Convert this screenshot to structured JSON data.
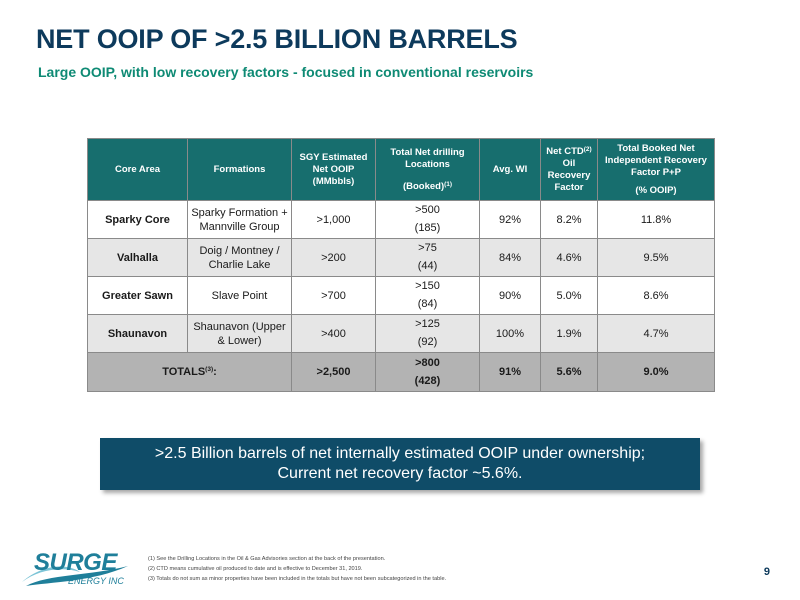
{
  "header": {
    "title": "NET OOIP OF >2.5 BILLION BARRELS",
    "subtitle": "Large OOIP, with low recovery factors - focused in conventional reservoirs"
  },
  "table": {
    "headers": {
      "core_area": "Core Area",
      "formations": "Formations",
      "ooip": "SGY Estimated Net OOIP (MMbbls)",
      "drilling_line1": "Total Net drilling Locations",
      "drilling_booked": "(Booked)",
      "drilling_booked_sup": "(1)",
      "wi": "Avg. WI",
      "ctd_prefix": "Net CTD",
      "ctd_sup": "(2)",
      "ctd_rest": "Oil Recovery Factor",
      "rf_line1": "Total Booked Net Independent Recovery Factor P+P",
      "rf_line2": "(% OOIP)"
    },
    "rows": [
      {
        "area": "Sparky Core",
        "formations": "Sparky Formation + Mannville Group",
        "ooip": ">1,000",
        "drill_total": ">500",
        "drill_booked": "(185)",
        "wi": "92%",
        "ctd": "8.2%",
        "rf": "11.8%"
      },
      {
        "area": "Valhalla",
        "formations": "Doig / Montney / Charlie Lake",
        "ooip": ">200",
        "drill_total": ">75",
        "drill_booked": "(44)",
        "wi": "84%",
        "ctd": "4.6%",
        "rf": "9.5%"
      },
      {
        "area": "Greater Sawn",
        "formations": "Slave Point",
        "ooip": ">700",
        "drill_total": ">150",
        "drill_booked": "(84)",
        "wi": "90%",
        "ctd": "5.0%",
        "rf": "8.6%"
      },
      {
        "area": "Shaunavon",
        "formations": "Shaunavon (Upper & Lower)",
        "ooip": ">400",
        "drill_total": ">125",
        "drill_booked": "(92)",
        "wi": "100%",
        "ctd": "1.9%",
        "rf": "4.7%"
      }
    ],
    "totals": {
      "label": "TOTALS",
      "label_sup": "(3)",
      "label_colon": ":",
      "ooip": ">2,500",
      "drill_total": ">800",
      "drill_booked": "(428)",
      "wi": "91%",
      "ctd": "5.6%",
      "rf": "9.0%"
    }
  },
  "callout": {
    "line1": ">2.5 Billion barrels of net internally estimated OOIP under ownership;",
    "line2": "Current net recovery factor ~5.6%."
  },
  "footer": {
    "logo_main": "SURGE",
    "logo_sub": "ENERGY INC",
    "notes": [
      "(1) See the Drilling Locations in the Oil & Gas Advisories section at the back of the presentation.",
      "(2) CTD means cumulative oil produced to date and is effective to December 31, 2019.",
      "(3) Totals do not sum as minor properties have been included in the totals but have not been subcategorized in the table."
    ],
    "page_number": "9"
  },
  "colors": {
    "title": "#0d3a5c",
    "subtitle": "#0e8a74",
    "table_header": "#176e6e",
    "row_alt": "#e6e6e6",
    "totals_row": "#b3b3b3",
    "callout": "#0f4c68",
    "logo": "#1f7f9a"
  }
}
